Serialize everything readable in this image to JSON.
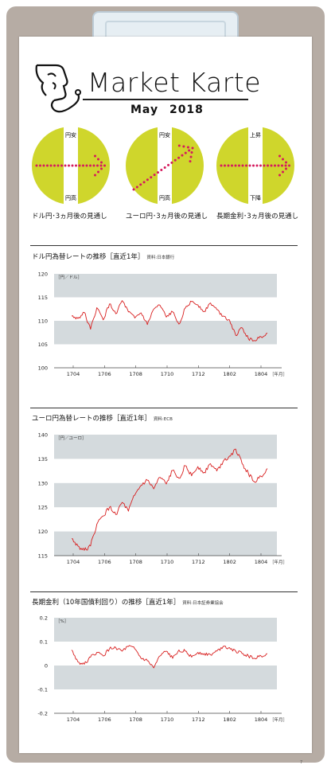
{
  "title": "Market Karte",
  "subtitle": "May   2018",
  "outlooks": [
    {
      "caption": "ドル円･3ヵ月後の見通し",
      "top_label": "円安",
      "bottom_label": "円高",
      "direction": "flat"
    },
    {
      "caption": "ユーロ円･3ヵ月後の見通し",
      "top_label": "円安",
      "bottom_label": "円高",
      "direction": "up"
    },
    {
      "caption": "長期金利･3ヵ月後の見通し",
      "top_label": "上昇",
      "bottom_label": "下降",
      "direction": "flat"
    }
  ],
  "colors": {
    "circle": "#cfd62c",
    "dots": "#d51a5d",
    "line": "#d81e1e",
    "band": "#d4dadd",
    "board": "#b6aca4"
  },
  "chart_data": [
    {
      "type": "line",
      "title": "ドル円為替レートの推移［直近1年］",
      "source": "資料:日本銀行",
      "unit": "［円／ドル］",
      "xunit": "［年月］",
      "x_ticks": [
        "1704",
        "1706",
        "1708",
        "1710",
        "1712",
        "1802",
        "1804"
      ],
      "y_ticks": [
        "120",
        "115",
        "110",
        "105",
        "100"
      ],
      "ylim": [
        100,
        120
      ],
      "series": [
        {
          "values": [
            111.0,
            110.5,
            111.8,
            108.2,
            112.8,
            110.2,
            113.6,
            111.5,
            114.3,
            111.9,
            110.6,
            111.7,
            109.2,
            112.5,
            113.3,
            110.8,
            111.9,
            109.3,
            112.7,
            114.1,
            113.4,
            112.0,
            113.8,
            112.4,
            111.0,
            110.2,
            106.9,
            108.5,
            106.2,
            105.8,
            106.6,
            107.4
          ]
        }
      ]
    },
    {
      "type": "line",
      "title": "ユーロ円為替レートの推移［直近1年］",
      "source": "資料:ECB",
      "unit": "［円／ユーロ］",
      "xunit": "［年月］",
      "x_ticks": [
        "1704",
        "1706",
        "1708",
        "1710",
        "1712",
        "1802",
        "1804"
      ],
      "y_ticks": [
        "140",
        "135",
        "130",
        "125",
        "120",
        "115"
      ],
      "ylim": [
        115,
        140
      ],
      "series": [
        {
          "values": [
            118.5,
            117.0,
            116.1,
            117.0,
            121.5,
            123.2,
            125.0,
            123.5,
            126.0,
            124.2,
            127.5,
            129.5,
            130.6,
            128.8,
            131.2,
            129.8,
            132.6,
            131.0,
            133.6,
            131.5,
            133.4,
            132.2,
            134.0,
            132.5,
            134.5,
            135.6,
            137.0,
            134.0,
            132.0,
            130.2,
            131.4,
            133.0
          ]
        }
      ]
    },
    {
      "type": "line",
      "title": "長期金利（10年国債利回り）の推移［直近1年］",
      "source": "資料:日本証券業協会",
      "unit": "［%］",
      "xunit": "［年月］",
      "x_ticks": [
        "1704",
        "1706",
        "1708",
        "1710",
        "1712",
        "1802",
        "1804"
      ],
      "y_ticks": [
        "0.2",
        "0.1",
        "0",
        "-0.1",
        "-0.2"
      ],
      "ylim": [
        -0.2,
        0.2
      ],
      "series": [
        {
          "values": [
            0.065,
            0.015,
            0.005,
            0.035,
            0.055,
            0.04,
            0.07,
            0.075,
            0.06,
            0.08,
            0.07,
            0.03,
            0.02,
            -0.01,
            0.04,
            0.06,
            0.03,
            0.065,
            0.06,
            0.035,
            0.055,
            0.05,
            0.045,
            0.06,
            0.08,
            0.075,
            0.06,
            0.05,
            0.04,
            0.03,
            0.04,
            0.05
          ]
        }
      ]
    }
  ],
  "footer": "7"
}
